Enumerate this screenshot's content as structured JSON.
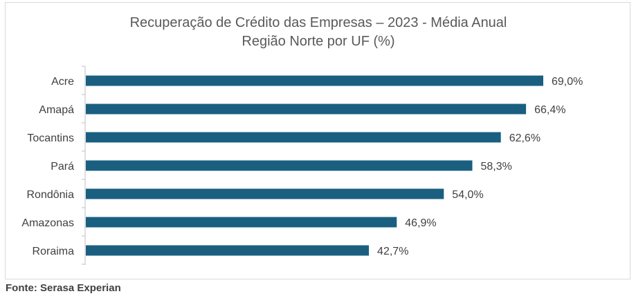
{
  "chart_data": {
    "type": "bar",
    "orientation": "horizontal",
    "title": "Recuperação de Crédito das Empresas – 2023 - Média Anual",
    "subtitle": "Região Norte por UF (%)",
    "categories": [
      "Acre",
      "Amapá",
      "Tocantins",
      "Pará",
      "Rondônia",
      "Amazonas",
      "Roraima"
    ],
    "values": [
      69.0,
      66.4,
      62.6,
      58.3,
      54.0,
      46.9,
      42.7
    ],
    "value_labels": [
      "69,0%",
      "66,4%",
      "62,6%",
      "58,3%",
      "54,0%",
      "46,9%",
      "42,7%"
    ],
    "xlim": [
      0,
      75
    ],
    "grid": false,
    "legend": "none",
    "bar_color": "#1a5f80"
  },
  "footer": {
    "source": "Fonte: Serasa Experian"
  }
}
